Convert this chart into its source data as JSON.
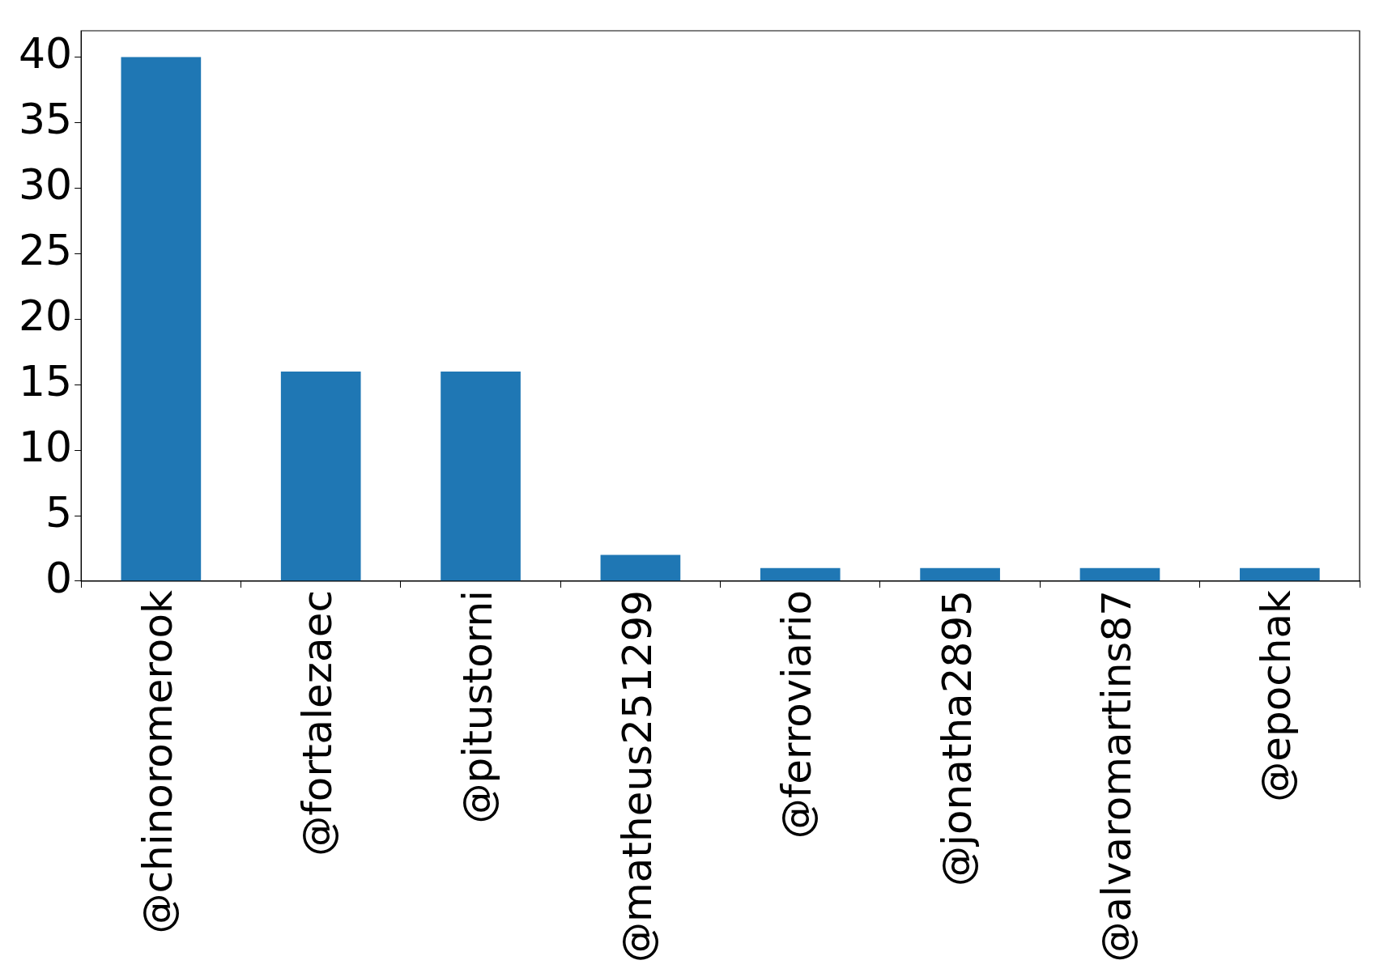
{
  "chart_data": {
    "type": "bar",
    "categories": [
      "@chinoromerook",
      "@fortalezaec",
      "@pitustorni",
      "@matheus251299",
      "@ferroviario",
      "@jonatha2895",
      "@alvaromartins87",
      "@epochak"
    ],
    "values": [
      40,
      16,
      16,
      2,
      1,
      1,
      1,
      1
    ],
    "color": "#1f77b4",
    "ylim": [
      0,
      42
    ],
    "yticks": [
      0,
      5,
      10,
      15,
      20,
      25,
      30,
      35,
      40
    ],
    "grid": false,
    "legend": false
  }
}
